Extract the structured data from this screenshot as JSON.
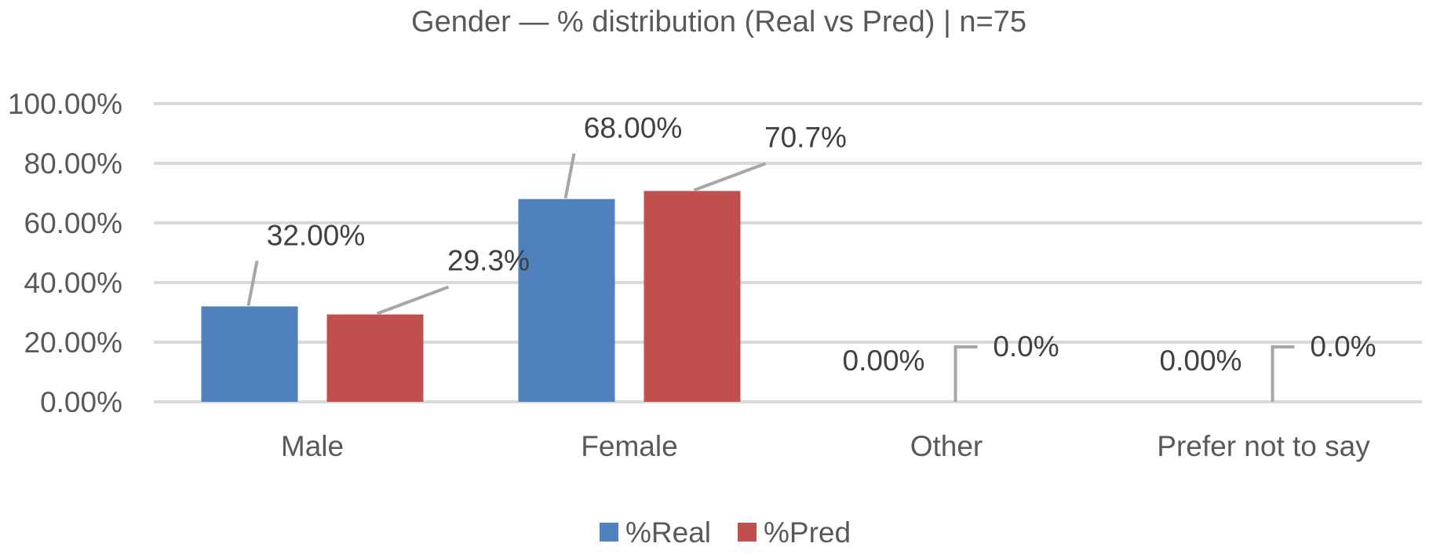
{
  "chart_data": {
    "type": "bar",
    "title": "Gender — % distribution (Real vs Pred) | n=75",
    "xlabel": "",
    "ylabel": "",
    "categories": [
      "Male",
      "Female",
      "Other",
      "Prefer not to say"
    ],
    "series": [
      {
        "name": "%Real",
        "color": "#4f81bd",
        "values": [
          32.0,
          68.0,
          0.0,
          0.0
        ],
        "data_labels": [
          "32.00%",
          "68.00%",
          "0.00%",
          "0.00%"
        ]
      },
      {
        "name": "%Pred",
        "color": "#c0504d",
        "values": [
          29.3,
          70.7,
          0.0,
          0.0
        ],
        "data_labels": [
          "29.3%",
          "70.7%",
          "0.0%",
          "0.0%"
        ]
      }
    ],
    "ylim": [
      0,
      100
    ],
    "y_ticks": [
      0,
      20,
      40,
      60,
      80,
      100
    ],
    "y_tick_labels": [
      "0.00%",
      "20.00%",
      "40.00%",
      "60.00%",
      "80.00%",
      "100.00%"
    ],
    "grid": true,
    "legend_position": "bottom"
  }
}
